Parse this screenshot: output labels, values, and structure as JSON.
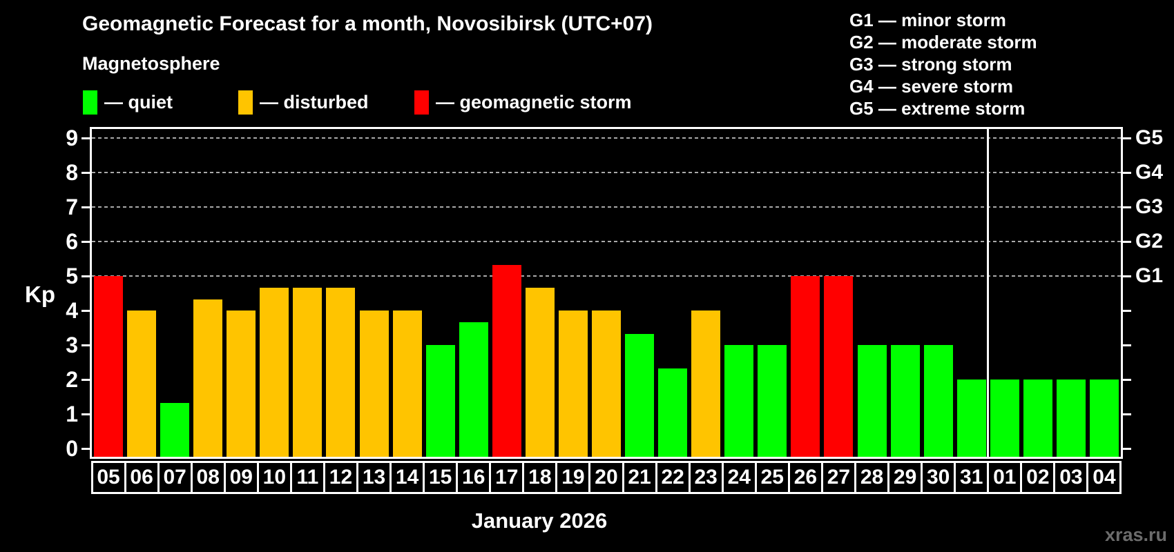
{
  "header": {
    "title": "Geomagnetic Forecast for a month, Novosibirsk (UTC+07)",
    "subtitle": "Magnetosphere"
  },
  "legend": {
    "items": [
      {
        "key": "quiet",
        "label": "— quiet",
        "color": "#00ff00",
        "x": 120
      },
      {
        "key": "disturbed",
        "label": "— disturbed",
        "color": "#ffc400",
        "x": 345
      },
      {
        "key": "storm",
        "label": "— geomagnetic storm",
        "color": "#ff0000",
        "x": 600
      }
    ]
  },
  "g_legend": {
    "items": [
      "G1 — minor storm",
      "G2 — moderate storm",
      "G3 — strong storm",
      "G4 — severe storm",
      "G5 — extreme storm"
    ]
  },
  "axes": {
    "y_label": "Kp",
    "y_ticks": [
      0,
      1,
      2,
      3,
      4,
      5,
      6,
      7,
      8,
      9
    ],
    "right_labels": [
      {
        "kp": 5,
        "label": "G1"
      },
      {
        "kp": 6,
        "label": "G2"
      },
      {
        "kp": 7,
        "label": "G3"
      },
      {
        "kp": 8,
        "label": "G4"
      },
      {
        "kp": 9,
        "label": "G5"
      }
    ],
    "x_label": "January 2026"
  },
  "watermark": "xras.ru",
  "chart_data": {
    "type": "bar",
    "title": "Geomagnetic Forecast for a month, Novosibirsk (UTC+07)",
    "xlabel": "January 2026",
    "ylabel": "Kp",
    "ylim": [
      0,
      9
    ],
    "gridlines_at": [
      5,
      6,
      7,
      8,
      9
    ],
    "legend_position": "top",
    "month_separator_after_index": 26,
    "categories": [
      "05",
      "06",
      "07",
      "08",
      "09",
      "10",
      "11",
      "12",
      "13",
      "14",
      "15",
      "16",
      "17",
      "18",
      "19",
      "20",
      "21",
      "22",
      "23",
      "24",
      "25",
      "26",
      "27",
      "28",
      "29",
      "30",
      "31",
      "01",
      "02",
      "03",
      "04"
    ],
    "values": [
      5,
      4,
      1.33,
      4.33,
      4,
      4.67,
      4.67,
      4.67,
      4,
      4,
      3,
      3.67,
      5.33,
      4.67,
      4,
      4,
      3.33,
      2.33,
      4,
      3,
      3,
      5,
      5,
      3,
      3,
      3,
      2,
      2,
      2,
      2,
      2
    ],
    "states": [
      "storm",
      "disturbed",
      "quiet",
      "disturbed",
      "disturbed",
      "disturbed",
      "disturbed",
      "disturbed",
      "disturbed",
      "disturbed",
      "quiet",
      "quiet",
      "storm",
      "disturbed",
      "disturbed",
      "disturbed",
      "quiet",
      "quiet",
      "disturbed",
      "quiet",
      "quiet",
      "storm",
      "storm",
      "quiet",
      "quiet",
      "quiet",
      "quiet",
      "quiet",
      "quiet",
      "quiet",
      "quiet"
    ],
    "colors": {
      "quiet": "#00ff00",
      "disturbed": "#ffc400",
      "storm": "#ff0000"
    }
  }
}
